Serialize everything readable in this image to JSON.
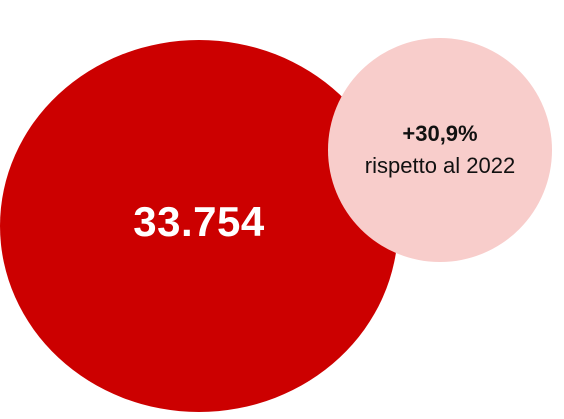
{
  "main_metric": {
    "value": "33.754",
    "color": "#cc0000"
  },
  "comparison": {
    "change": "+30,9%",
    "text": "rispetto al 2022",
    "color": "#f8cdcb"
  }
}
